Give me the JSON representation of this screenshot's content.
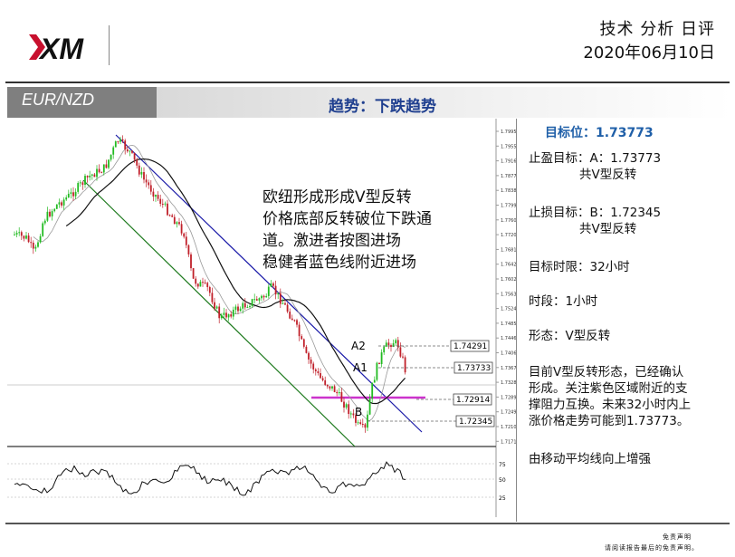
{
  "header": {
    "logo_text": "XM",
    "report_type": "技术 分析 日评",
    "date": "2020年06月10日"
  },
  "banner": {
    "pair": "EUR/NZD",
    "trend": "趋势：下跌趋势"
  },
  "chart": {
    "annotation": [
      "欧纽形成形成V型反转",
      "价格底部反转破位下跌通",
      "道。激进者按图进场",
      "稳健者蓝色线附近进场"
    ],
    "levels": [
      {
        "name": "A2",
        "value": "1.74291"
      },
      {
        "name": "A1",
        "value": "1.73733"
      },
      {
        "name": "",
        "value": "1.72914"
      },
      {
        "name": "B",
        "value": "1.72345"
      }
    ],
    "price_axis": [
      "1.79950",
      "1.79550",
      "1.79160",
      "1.78770",
      "1.78380",
      "1.77990",
      "1.77600",
      "1.77200",
      "1.76810",
      "1.76420",
      "1.76020",
      "1.75630",
      "1.75240",
      "1.74850",
      "1.74460",
      "1.74060",
      "1.73670",
      "1.73280",
      "1.72890",
      "1.72490",
      "1.72100",
      "1.71710"
    ],
    "osc_axis": [
      "75",
      "50",
      "25"
    ],
    "colors": {
      "blue_line": "#1a1aa8",
      "green_line": "#1e7a1e",
      "magenta": "#cc33cc",
      "up": "#22bb22",
      "down": "#c0202a"
    }
  },
  "panel": {
    "target_title": "目标位：1.73773",
    "take_profit_label": "止盈目标：A：1.73773",
    "take_profit_note": "共V型反转",
    "stop_loss_label": "止损目标：B：1.72345",
    "stop_loss_note": "共V型反转",
    "time_window": "目标时限：32小时",
    "period": "时段：1小时",
    "pattern": "形态：V型反转",
    "analysis": [
      "目前V型反转形态，已经确认",
      "形成。关注紫色区域附近的支",
      "撑阻力互换。未来32小时内上",
      "涨价格走势可能到1.73773。"
    ],
    "summary": "由移动平均线向上增强"
  },
  "footer": {
    "disclaimer_title": "免责声明",
    "disclaimer_text": "请阅读报告最后的免责声明。"
  }
}
